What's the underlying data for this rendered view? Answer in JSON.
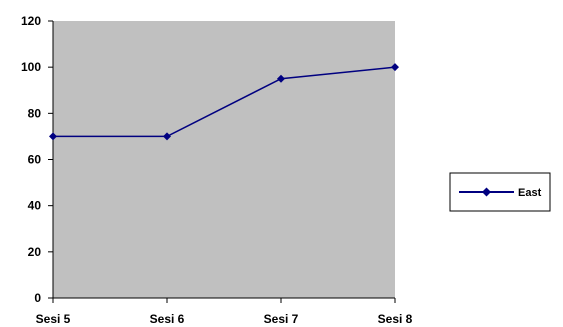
{
  "chart_data": {
    "type": "line",
    "categories": [
      "Sesi 5",
      "Sesi 6",
      "Sesi 7",
      "Sesi 8"
    ],
    "series": [
      {
        "name": "East",
        "values": [
          70,
          70,
          95,
          100
        ],
        "color": "#000080",
        "marker": "diamond"
      }
    ],
    "ylim": [
      0,
      120
    ],
    "yticks": [
      0,
      20,
      40,
      60,
      80,
      100,
      120
    ],
    "grid": false,
    "plot_background": "#C0C0C0",
    "legend_position": "right"
  }
}
